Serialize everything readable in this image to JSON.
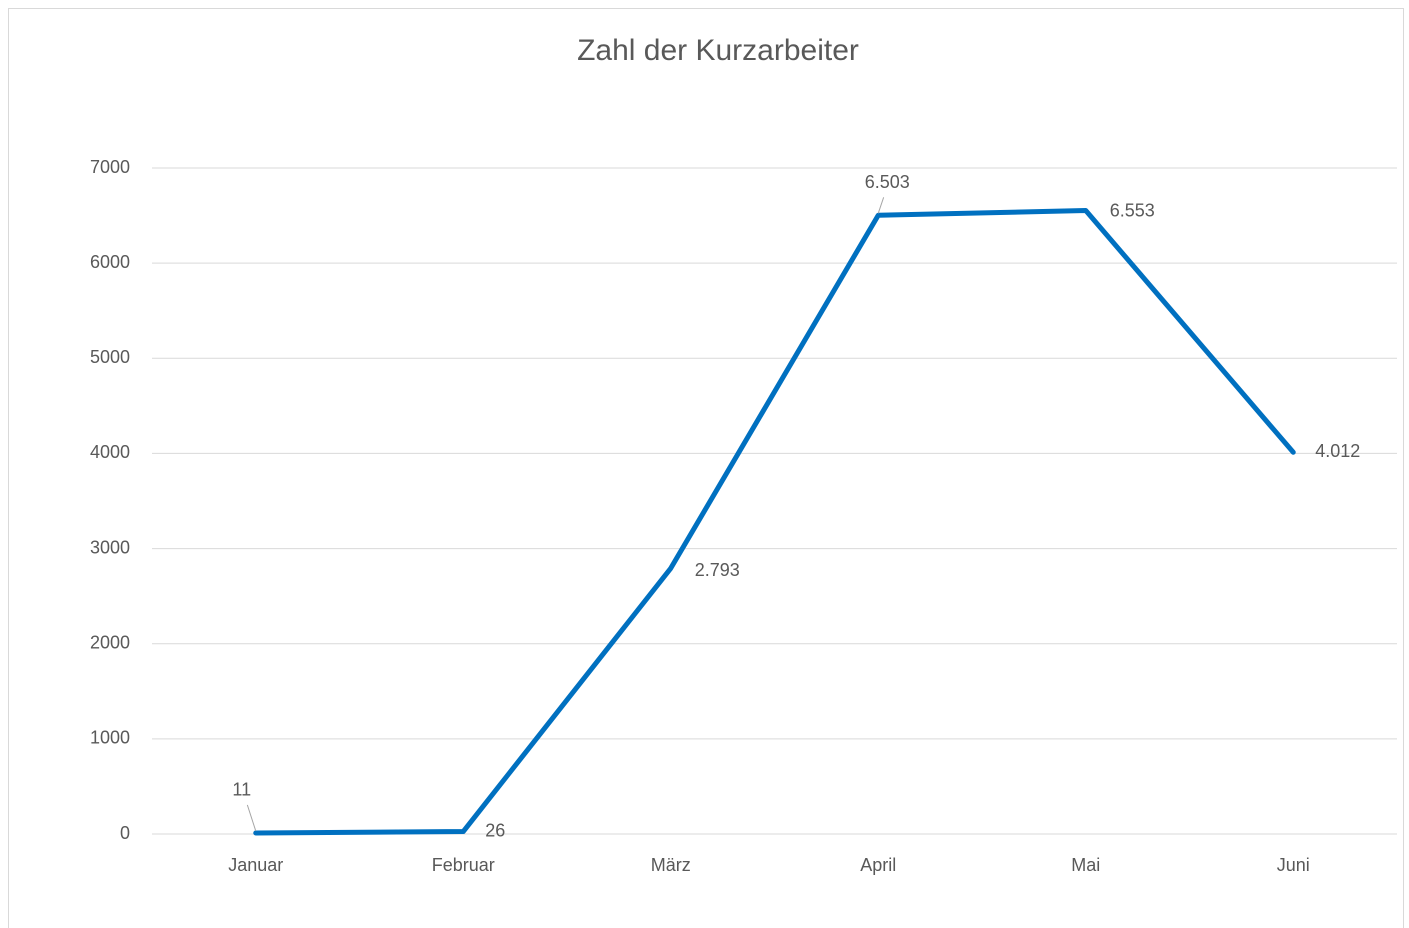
{
  "chart_data": {
    "type": "line",
    "title": "Zahl der Kurzarbeiter",
    "categories": [
      "Januar",
      "Februar",
      "März",
      "April",
      "Mai",
      "Juni"
    ],
    "series": [
      {
        "name": "Zahl der Kurzarbeiter",
        "color": "#0070c0",
        "values": [
          11,
          26,
          2793,
          6503,
          6553,
          4012
        ],
        "value_labels": [
          "11",
          "26",
          "2.793",
          "6.503",
          "6.553",
          "4.012"
        ]
      }
    ],
    "ylim": [
      0,
      7000
    ],
    "yticks": [
      0,
      1000,
      2000,
      3000,
      4000,
      5000,
      6000,
      7000
    ],
    "grid": true
  }
}
